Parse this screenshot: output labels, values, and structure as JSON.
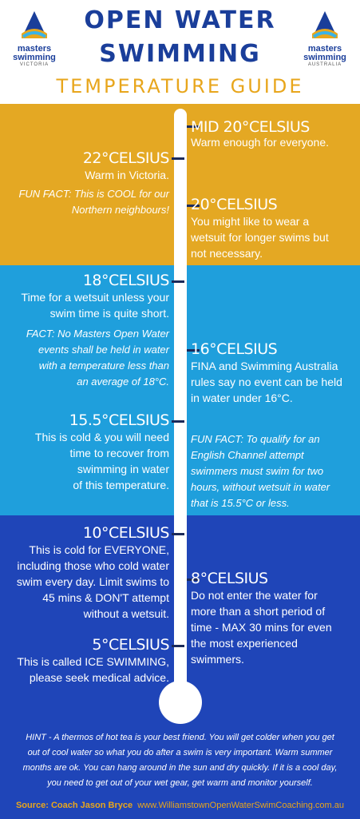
{
  "header": {
    "title_line1": "OPEN WATER",
    "title_line2": "SWIMMING",
    "subtitle": "TEMPERATURE GUIDE",
    "logo_left": {
      "line1": "masters",
      "line2": "swimming",
      "line3": "VICTORIA"
    },
    "logo_right": {
      "line1": "masters",
      "line2": "swimming",
      "line3": "AUSTRALIA"
    }
  },
  "colors": {
    "band_warm": "#e4a823",
    "band_mid": "#1f9fdc",
    "band_cold": "#1f45b8",
    "title": "#1a3e9a",
    "accent": "#e8a61c"
  },
  "levels": {
    "mid20": {
      "heading": "MID 20°CELSIUS",
      "text": "Warm enough for everyone."
    },
    "c22": {
      "heading": "22°CELSIUS",
      "text": "Warm in Victoria.",
      "fact": [
        "FUN FACT: This is COOL for our",
        "Northern neighbours!"
      ]
    },
    "c20": {
      "heading": "20°CELSIUS",
      "text": [
        "You might like to wear a",
        "wetsuit for longer swims but",
        "not necessary."
      ]
    },
    "c18": {
      "heading": "18°CELSIUS",
      "text": [
        "Time for a wetsuit unless your",
        "swim time is quite short."
      ],
      "fact": [
        "FACT: No Masters Open Water",
        "events shall be held in water",
        "with a temperature less than",
        "an average of 18°C."
      ]
    },
    "c16": {
      "heading": "16°CELSIUS",
      "text": [
        "FINA and Swimming Australia",
        "rules say no event can be held",
        "in water under 16°C."
      ]
    },
    "c155": {
      "heading": "15.5°CELSIUS",
      "text": [
        "This is cold & you will need",
        "time to recover from",
        "swimming in water",
        "of this temperature."
      ]
    },
    "fact155": [
      "FUN FACT: To qualify for an",
      "English Channel attempt",
      "swimmers must swim for two",
      "hours, without wetsuit in water",
      "that is 15.5°C or less."
    ],
    "c10": {
      "heading": "10°CELSIUS",
      "text": [
        "This is cold for EVERYONE,",
        "including those who cold water",
        "swim every day. Limit swims to",
        "45 mins & DON'T attempt",
        "without a wetsuit."
      ]
    },
    "c8": {
      "heading": "8°CELSIUS",
      "text": [
        "Do not enter the water for",
        "more than a short period of",
        "time - MAX 30 mins for even",
        "the most experienced",
        "swimmers."
      ]
    },
    "c5": {
      "heading": "5°CELSIUS",
      "text": [
        "This is called ICE SWIMMING,",
        "please seek medical advice."
      ]
    }
  },
  "hint": [
    "HINT - A thermos of hot tea is your best friend.  You will get colder when you get",
    "out of cool water so what you do after a swim is very important. Warm summer",
    "months are ok. You can hang around in the sun and dry quickly. If it is a cool day,",
    "you need to get out of your wet gear, get warm and monitor yourself."
  ],
  "source": {
    "label": "Source: Coach Jason Bryce",
    "url": "www.WilliamstownOpenWaterSwimCoaching.com.au"
  }
}
